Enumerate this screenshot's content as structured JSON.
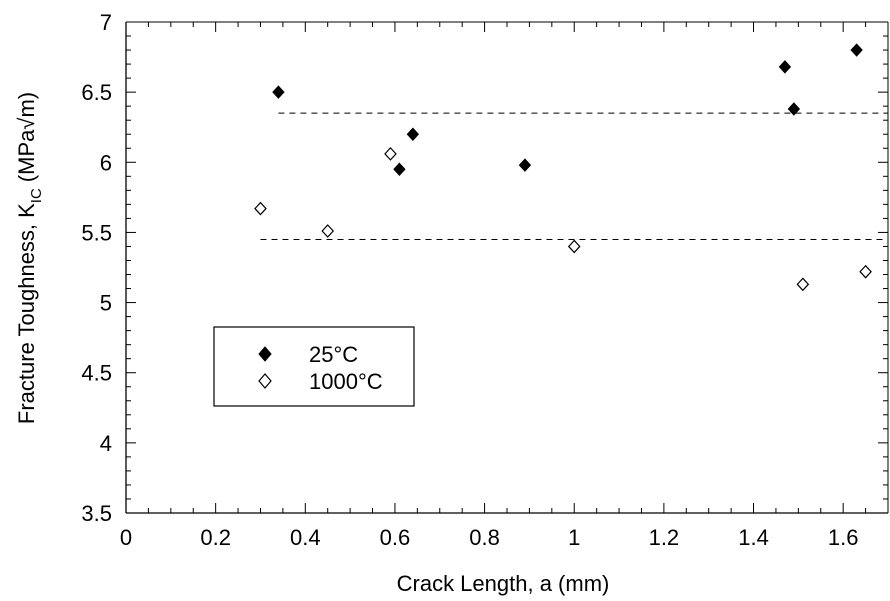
{
  "chart_data": {
    "type": "scatter",
    "title": "",
    "xlabel": "Crack Length, a (mm)",
    "ylabel_main": "Fracture Toughness, K",
    "ylabel_sub": "IC",
    "ylabel_unit": "(MPa√m)",
    "xlim": [
      0,
      1.7
    ],
    "ylim": [
      3.5,
      7
    ],
    "x_ticks": [
      "0",
      "0.2",
      "0.4",
      "0.6",
      "0.8",
      "1",
      "1.2",
      "1.4",
      "1.6"
    ],
    "y_ticks": [
      "3.5",
      "4",
      "4.5",
      "5",
      "5.5",
      "6",
      "6.5",
      "7"
    ],
    "grid": false,
    "legend_position": "center-left",
    "series": [
      {
        "name": "25°C",
        "marker": "filled-diamond",
        "color": "#000000",
        "points": [
          [
            0.34,
            6.5
          ],
          [
            0.61,
            5.95
          ],
          [
            0.64,
            6.2
          ],
          [
            0.89,
            5.98
          ],
          [
            1.47,
            6.68
          ],
          [
            1.49,
            6.38
          ],
          [
            1.63,
            6.8
          ]
        ]
      },
      {
        "name": "1000°C",
        "marker": "open-diamond",
        "color": "#000000",
        "points": [
          [
            0.3,
            5.67
          ],
          [
            0.45,
            5.51
          ],
          [
            0.59,
            6.06
          ],
          [
            1.0,
            5.4
          ],
          [
            1.51,
            5.13
          ],
          [
            1.65,
            5.22
          ]
        ]
      }
    ],
    "reference_lines": [
      {
        "y": 6.35,
        "x_start": 0.34,
        "x_end": 1.7,
        "style": "dashed"
      },
      {
        "y": 5.45,
        "x_start": 0.3,
        "x_end": 1.7,
        "style": "dashed"
      }
    ]
  }
}
